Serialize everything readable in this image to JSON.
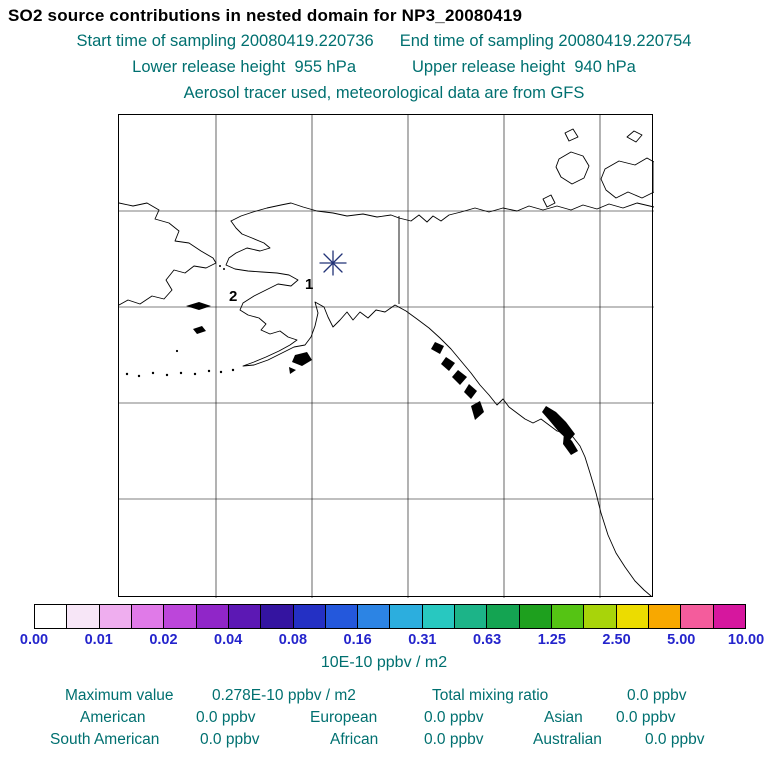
{
  "title": "SO2 source contributions in nested domain for NP3_20080419",
  "header": {
    "start_time": "Start time of sampling 20080419.220736",
    "end_time": "End time of sampling 20080419.220754",
    "lower_release": "Lower release height  955 hPa",
    "upper_release": "Upper release height  940 hPa",
    "tracer_line": "Aerosol tracer used, meteorological data are from GFS"
  },
  "map": {
    "source_markers": [
      {
        "label": "1"
      },
      {
        "label": "2"
      }
    ],
    "receptor_marker": "star"
  },
  "colorbar": {
    "tick_labels": [
      "0.00",
      "0.01",
      "0.02",
      "0.04",
      "0.08",
      "0.16",
      "0.31",
      "0.63",
      "1.25",
      "2.50",
      "5.00",
      "10.00"
    ],
    "colors": [
      "#ffffff",
      "#f7e6f7",
      "#efaeef",
      "#e07ae8",
      "#bc46da",
      "#9026c8",
      "#5c18b4",
      "#3414a0",
      "#2430c4",
      "#2458dc",
      "#2c84e4",
      "#2caede",
      "#28c8c0",
      "#1cb488",
      "#14a452",
      "#1ea01e",
      "#55c414",
      "#a8d40a",
      "#ecdc00",
      "#f8a800",
      "#f45c9c",
      "#d6179e"
    ],
    "units": "10E-10 ppbv / m2"
  },
  "stats": {
    "max_label": "Maximum value",
    "max_value": "0.278E-10 ppbv / m2",
    "total_label": "Total mixing ratio",
    "total_value": "0.0 ppbv",
    "regions": [
      {
        "name": "American",
        "value": "0.0 ppbv"
      },
      {
        "name": "European",
        "value": "0.0 ppbv"
      },
      {
        "name": "Asian",
        "value": "0.0 ppbv"
      },
      {
        "name": "South American",
        "value": "0.0 ppbv"
      },
      {
        "name": "African",
        "value": "0.0 ppbv"
      },
      {
        "name": "Australian",
        "value": "0.0 ppbv"
      }
    ]
  },
  "theme": {
    "heading_color": "#000000",
    "info_text_color": "#007070",
    "tick_label_color": "#2424cc",
    "star_color": "#223377"
  },
  "chart_data": {
    "type": "heatmap",
    "title": "SO2 source contributions in nested domain for NP3_20080419",
    "colorbar_levels": [
      0.0,
      0.01,
      0.02,
      0.04,
      0.08,
      0.16,
      0.31,
      0.63,
      1.25,
      2.5,
      5.0,
      10.0
    ],
    "colorbar_units": "10E-10 ppbv / m2",
    "legend_position": "bottom",
    "maximum_value": "0.278E-10 ppbv / m2",
    "total_mixing_ratio_ppbv": 0.0,
    "source_markers": [
      "1",
      "2"
    ],
    "receptor_marker": "star",
    "series": [
      {
        "name": "American",
        "values": [
          0.0
        ]
      },
      {
        "name": "European",
        "values": [
          0.0
        ]
      },
      {
        "name": "Asian",
        "values": [
          0.0
        ]
      },
      {
        "name": "South American",
        "values": [
          0.0
        ]
      },
      {
        "name": "African",
        "values": [
          0.0
        ]
      },
      {
        "name": "Australian",
        "values": [
          0.0
        ]
      }
    ],
    "notes_visible_on_plot": "Start time of sampling 20080419.220736; End time of sampling 20080419.220754; Lower release height 955 hPa; Upper release height 940 hPa; Aerosol tracer used, meteorological data are from GFS"
  }
}
